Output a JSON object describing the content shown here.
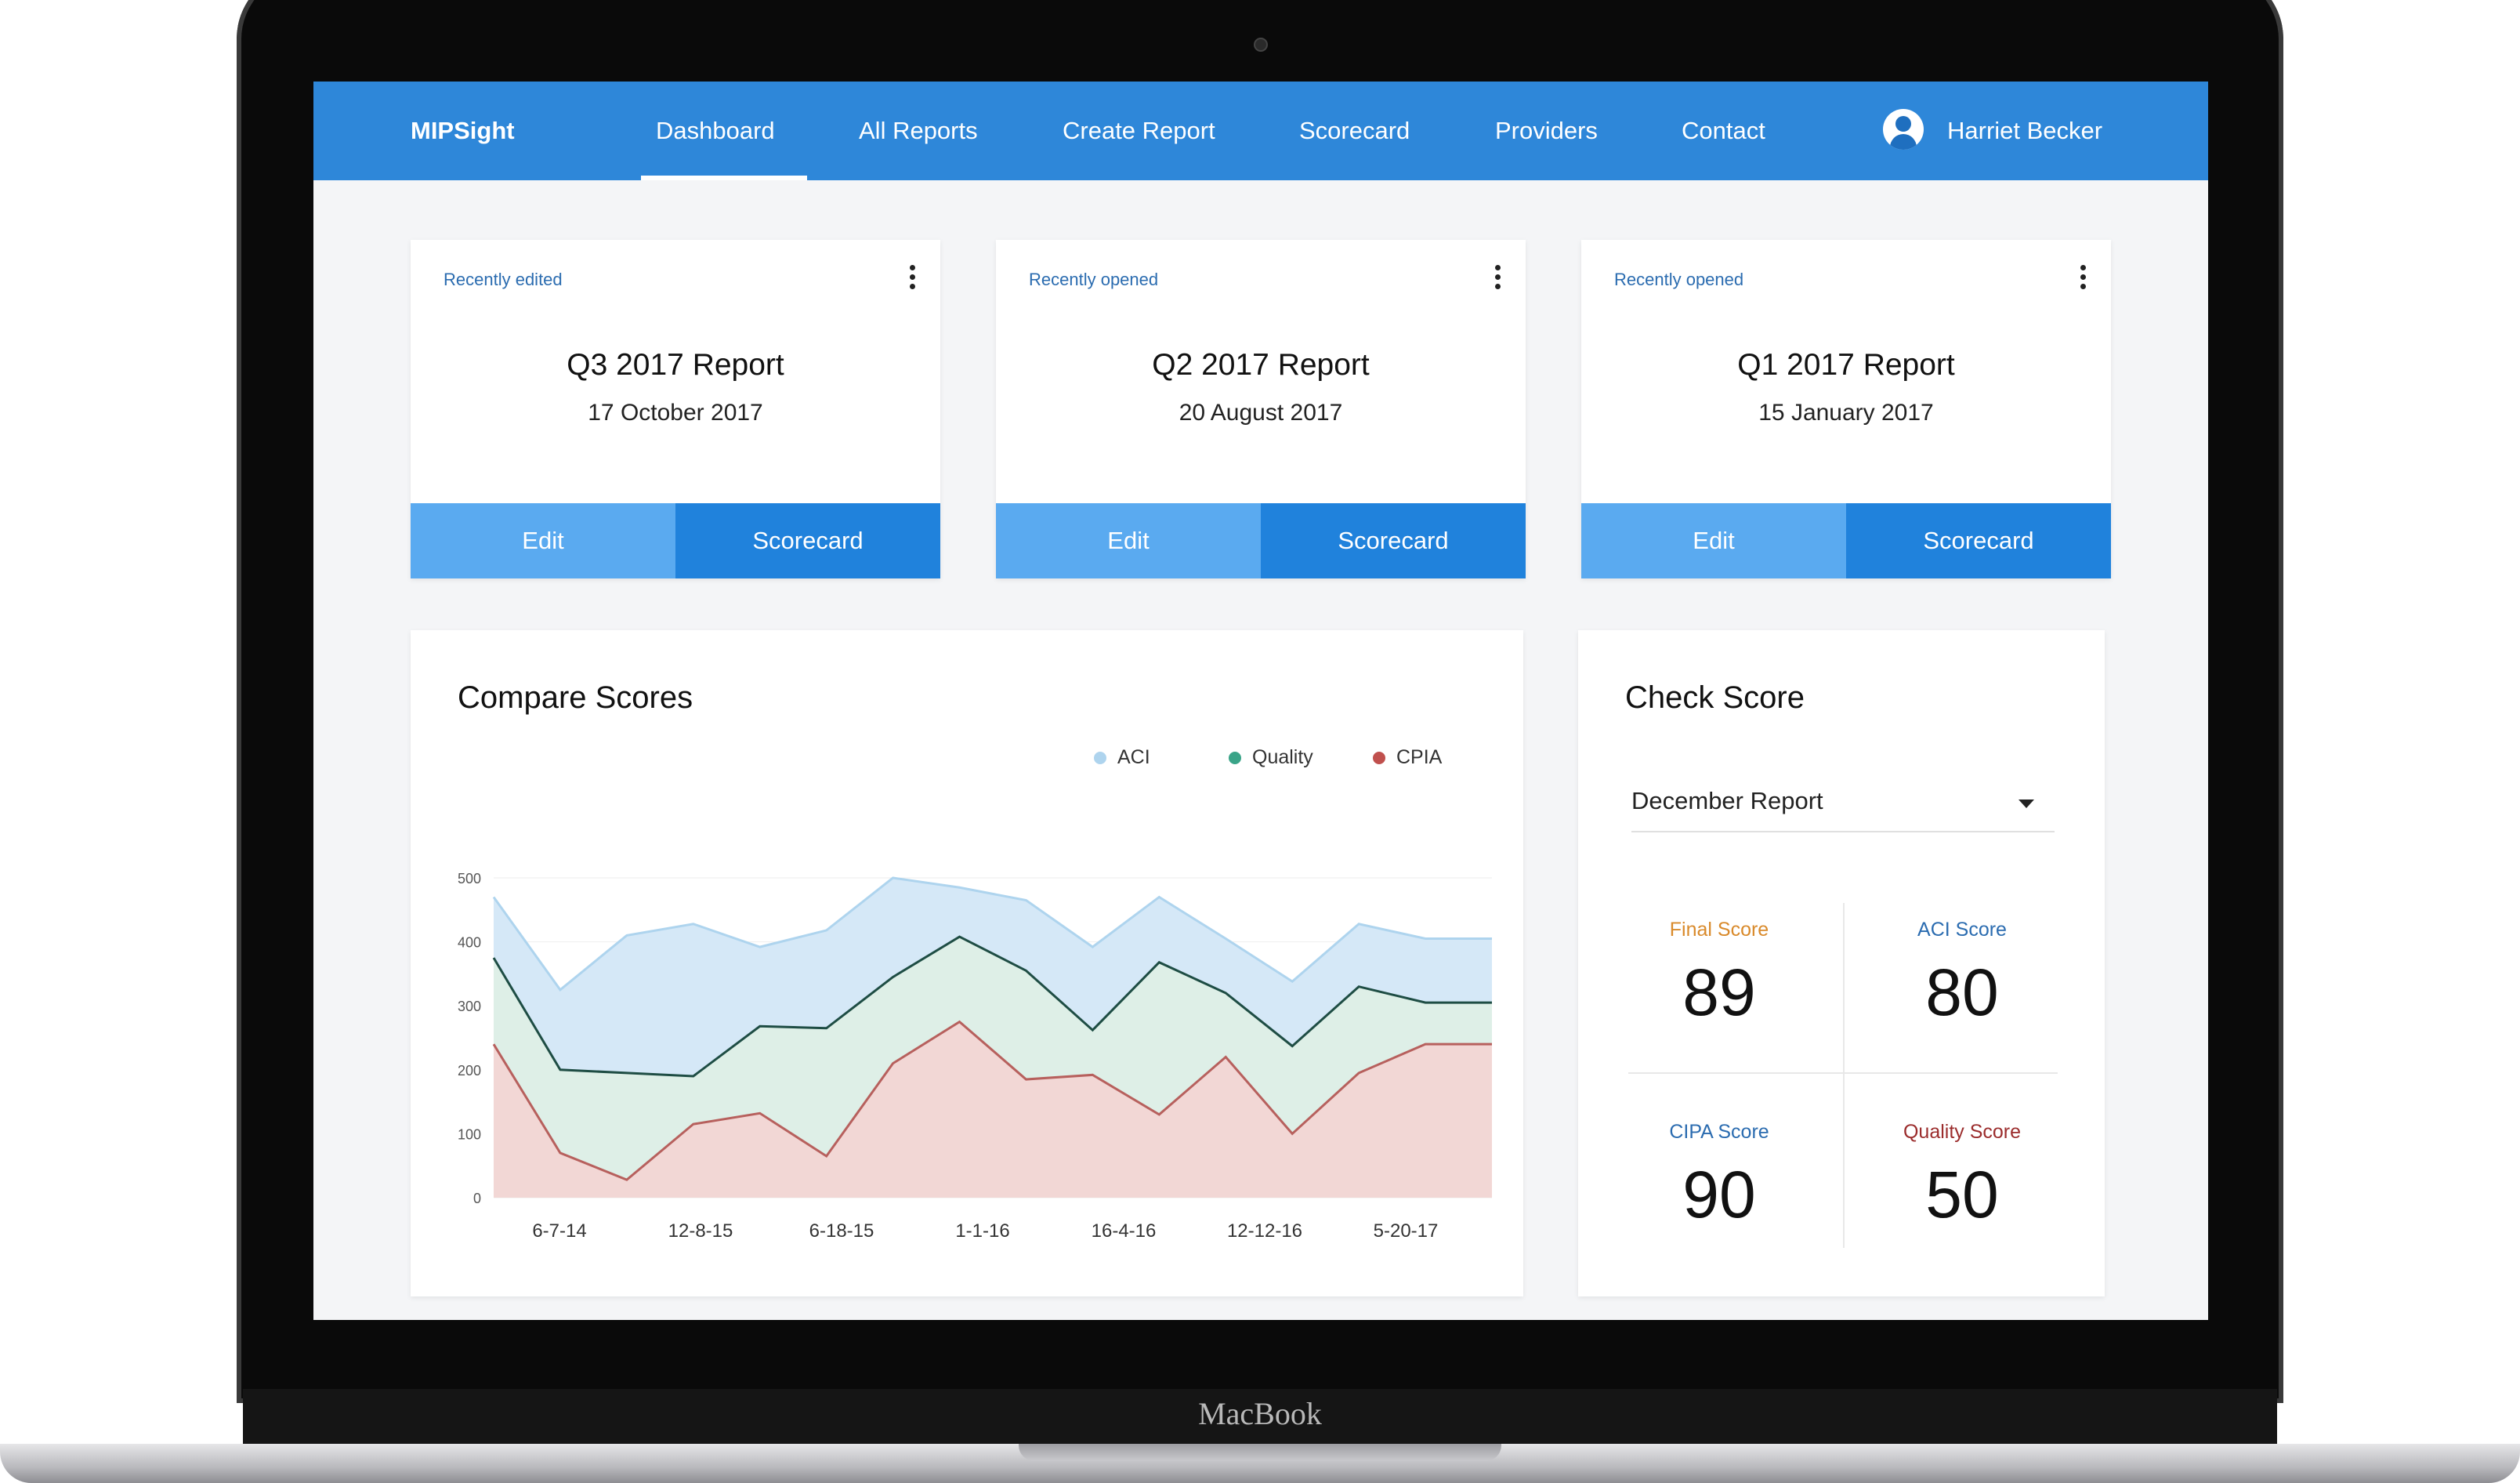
{
  "device": {
    "brand": "MacBook"
  },
  "nav": {
    "logo": "MIPSight",
    "items": [
      "Dashboard",
      "All Reports",
      "Create Report",
      "Scorecard",
      "Providers",
      "Contact"
    ],
    "active": "Dashboard",
    "user_name": "Harriet Becker"
  },
  "cards": [
    {
      "kicker": "Recently edited",
      "title": "Q3 2017 Report",
      "date": "17 October 2017",
      "edit_label": "Edit",
      "score_label": "Scorecard"
    },
    {
      "kicker": "Recently opened",
      "title": "Q2 2017 Report",
      "date": "20 August 2017",
      "edit_label": "Edit",
      "score_label": "Scorecard"
    },
    {
      "kicker": "Recently opened",
      "title": "Q1 2017 Report",
      "date": "15 January 2017",
      "edit_label": "Edit",
      "score_label": "Scorecard"
    }
  ],
  "compare": {
    "title": "Compare Scores",
    "legend": [
      {
        "name": "ACI",
        "color": "#aed4ee"
      },
      {
        "name": "Quality",
        "color": "#3aa488"
      },
      {
        "name": "CPIA",
        "color": "#c0504d"
      }
    ]
  },
  "chart_data": {
    "type": "area",
    "title": "Compare Scores",
    "ylim": [
      0,
      500
    ],
    "yticks": [
      "500",
      "400",
      "300",
      "200",
      "100",
      "0"
    ],
    "ytick_values": [
      500,
      400,
      300,
      200,
      100,
      0
    ],
    "xticks": [
      "6-7-14",
      "12-8-15",
      "6-18-15",
      "1-1-16",
      "16-4-16",
      "12-12-16",
      "5-20-17"
    ],
    "x_count": 16,
    "grid": true,
    "legend_position": "top-right",
    "series": [
      {
        "name": "ACI",
        "color": "#d5e8f7",
        "line": "#aed4ee",
        "values": [
          470,
          325,
          410,
          428,
          392,
          418,
          500,
          485,
          465,
          392,
          470,
          405,
          338,
          428,
          405,
          405
        ]
      },
      {
        "name": "Quality",
        "color": "#deefe7",
        "line": "#1e4d44",
        "values": [
          375,
          200,
          195,
          190,
          268,
          265,
          345,
          408,
          355,
          262,
          368,
          320,
          237,
          330,
          305,
          305
        ]
      },
      {
        "name": "CPIA",
        "color": "#f2d7d5",
        "line": "#b7605d",
        "values": [
          240,
          70,
          28,
          115,
          132,
          65,
          210,
          275,
          185,
          192,
          130,
          220,
          100,
          195,
          240,
          240
        ]
      }
    ]
  },
  "check": {
    "title": "Check Score",
    "select_value": "December Report",
    "scores": [
      {
        "label": "Final Score",
        "value": "89",
        "color": "#d98a2b"
      },
      {
        "label": "ACI Score",
        "value": "80",
        "color": "#2b6cb0"
      },
      {
        "label": "CIPA Score",
        "value": "90",
        "color": "#2b6cb0"
      },
      {
        "label": "Quality Score",
        "value": "50",
        "color": "#9b2c2c"
      }
    ]
  }
}
